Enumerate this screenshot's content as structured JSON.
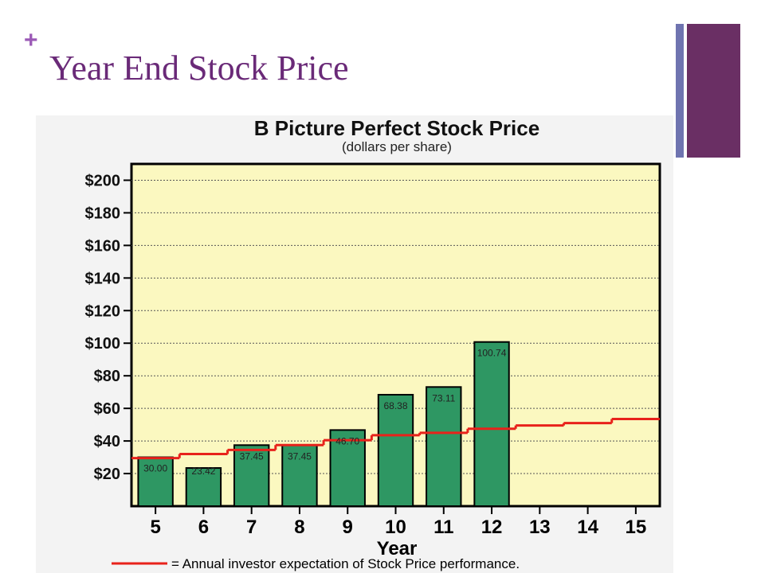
{
  "slide": {
    "title": "Year End Stock Price",
    "plus_symbol": "+"
  },
  "colors": {
    "title": "#6a2a78",
    "plus": "#9b59b6",
    "accent_thin": "#6f74b0",
    "accent_thick": "#6a2f64",
    "plot_bg": "#fbf8c0",
    "chart_bg": "#f3f3f3",
    "bar": "#2e9763",
    "expectation_line": "#e8221b"
  },
  "chart_data": {
    "type": "bar",
    "title": "B Picture Perfect Stock Price",
    "subtitle": "(dollars per share)",
    "xlabel": "Year",
    "ylabel": "",
    "ylim": [
      0,
      210
    ],
    "y_ticks": [
      20,
      40,
      60,
      80,
      100,
      120,
      140,
      160,
      180,
      200
    ],
    "y_tick_labels": [
      "$20",
      "$40",
      "$60",
      "$80",
      "$100",
      "$120",
      "$140",
      "$160",
      "$180",
      "$200"
    ],
    "categories": [
      "5",
      "6",
      "7",
      "8",
      "9",
      "10",
      "11",
      "12",
      "13",
      "14",
      "15"
    ],
    "series": [
      {
        "values": [
          30.0,
          23.42,
          37.45,
          37.45,
          46.7,
          68.38,
          73.11,
          100.74,
          null,
          null,
          null
        ],
        "data_labels": [
          "30.00",
          "23.42",
          "37.45",
          "37.45",
          "46.70",
          "68.38",
          "73.11",
          "100.74",
          "",
          "",
          ""
        ]
      },
      {
        "type": "line",
        "values": [
          29.5,
          32.0,
          34.5,
          37.5,
          40.5,
          43.5,
          45.0,
          47.5,
          49.5,
          51.0,
          53.5
        ]
      }
    ],
    "legend": {
      "placement": "bottom",
      "text": "= Annual investor expectation of Stock Price performance."
    },
    "grid": true
  }
}
